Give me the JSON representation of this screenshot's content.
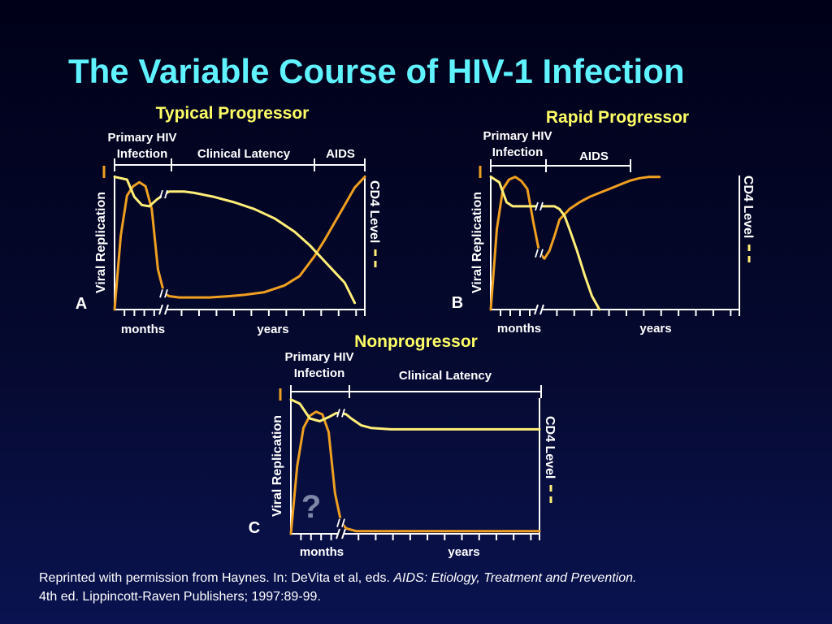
{
  "title": "The Variable Course of HIV-1 Infection",
  "colors": {
    "viral_replication": "#f0a020",
    "cd4_level": "#ffef78",
    "panel_title": "#ffff66",
    "main_title": "#5ff2ff",
    "axes": "#ffffff"
  },
  "common": {
    "left_axis_label": "Viral Replication",
    "right_axis_label": "CD4 Level",
    "months_label": "months",
    "years_label": "years",
    "question_mark": "?"
  },
  "chart_data": [
    {
      "type": "line",
      "panel_letter": "A",
      "title": "Typical Progressor",
      "phases": [
        "Primary HIV Infection",
        "Clinical Latency",
        "AIDS"
      ],
      "phase_label_lines": [
        [
          "Primary HIV",
          "Infection"
        ],
        [
          "Clinical Latency"
        ],
        [
          "AIDS"
        ]
      ],
      "series": [
        {
          "name": "Viral Replication",
          "x": [
            0,
            0.5,
            1,
            1.5,
            2,
            2.5,
            3,
            3.5,
            4,
            5,
            7,
            10,
            13,
            17,
            20,
            24,
            28,
            31,
            34,
            36,
            38,
            40,
            42,
            44
          ],
          "values": [
            0,
            55,
            85,
            92,
            95,
            92,
            75,
            30,
            12,
            10,
            9,
            9,
            9,
            10,
            11,
            13,
            18,
            25,
            40,
            52,
            65,
            78,
            91,
            99
          ]
        },
        {
          "name": "CD4 Level",
          "x": [
            0,
            1,
            1.6,
            2.2,
            2.8,
            3.4,
            4,
            5,
            6,
            7,
            8,
            10,
            14,
            18,
            22,
            26,
            30,
            33,
            36,
            38,
            40,
            42
          ],
          "values": [
            99,
            97,
            84,
            78,
            77,
            82,
            86,
            88,
            88,
            88,
            88,
            87,
            84,
            80,
            75,
            68,
            58,
            48,
            36,
            28,
            20,
            5
          ]
        }
      ]
    },
    {
      "type": "line",
      "panel_letter": "B",
      "title": "Rapid Progressor",
      "phases": [
        "Primary HIV Infection",
        "AIDS"
      ],
      "phase_label_lines": [
        [
          "Primary HIV",
          "Infection"
        ],
        [
          "AIDS"
        ]
      ],
      "series": [
        {
          "name": "Viral Replication",
          "x": [
            0,
            0.5,
            1,
            1.5,
            2,
            2.5,
            3,
            3.5,
            4,
            5,
            6,
            7,
            8,
            10,
            12,
            14,
            16,
            18,
            20,
            22,
            24,
            26,
            28
          ],
          "values": [
            0,
            60,
            90,
            97,
            99,
            96,
            90,
            65,
            42,
            38,
            44,
            55,
            67,
            75,
            80,
            84,
            87,
            90,
            93,
            96,
            98,
            99,
            99
          ]
        },
        {
          "name": "CD4 Level",
          "x": [
            0,
            0.7,
            1.3,
            1.8,
            2.5,
            3,
            4,
            5,
            7,
            8,
            9,
            10,
            11.5,
            13,
            14.5,
            16
          ],
          "values": [
            99,
            95,
            80,
            77,
            77,
            77,
            77,
            77,
            77,
            75,
            70,
            60,
            44,
            26,
            10,
            0
          ]
        }
      ]
    },
    {
      "type": "line",
      "panel_letter": "C",
      "title": "Nonprogressor",
      "phases": [
        "Primary HIV Infection",
        "Clinical Latency"
      ],
      "phase_label_lines": [
        [
          "Primary HIV",
          "Infection"
        ],
        [
          "Clinical Latency"
        ]
      ],
      "series": [
        {
          "name": "Viral Replication",
          "x": [
            0,
            0.5,
            1,
            1.5,
            2,
            2.5,
            3,
            3.5,
            4,
            5,
            7,
            10,
            20,
            30,
            40,
            44
          ],
          "values": [
            0,
            50,
            78,
            87,
            90,
            88,
            75,
            30,
            8,
            4,
            2,
            2,
            2,
            2,
            2,
            2
          ]
        },
        {
          "name": "CD4 Level",
          "x": [
            0,
            0.7,
            1.5,
            2.3,
            3,
            3.6,
            4,
            5,
            6,
            8,
            10,
            14,
            20,
            30,
            40,
            44
          ],
          "values": [
            99,
            96,
            85,
            83,
            86,
            89,
            89,
            88,
            85,
            80,
            78,
            77,
            77,
            77,
            77,
            77
          ]
        }
      ]
    }
  ],
  "caption": {
    "prefix": "Reprinted with permission from Haynes.  In:  DeVita et al, eds.  ",
    "italic": "AIDS:  Etiology, Treatment and Prevention.",
    "line2": "4th ed.  Lippincott-Raven Publishers; 1997:89-99."
  }
}
